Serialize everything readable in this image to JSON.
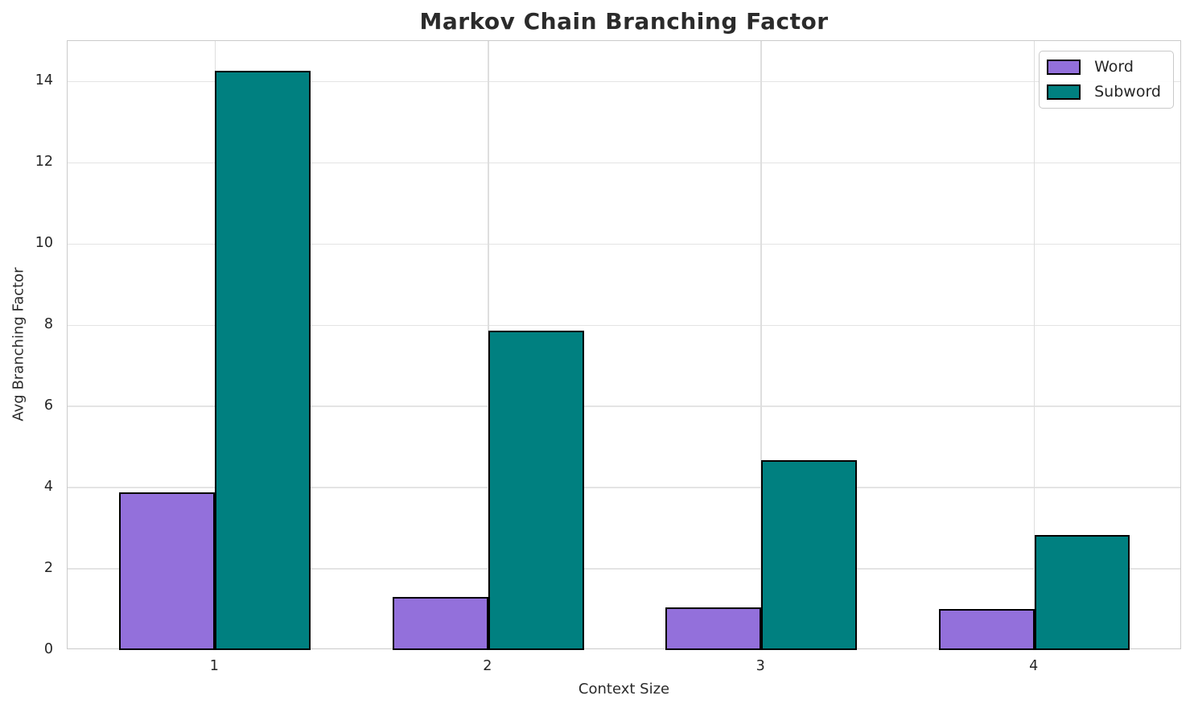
{
  "chart_data": {
    "type": "bar",
    "title": "Markov Chain Branching Factor",
    "xlabel": "Context Size",
    "ylabel": "Avg Branching Factor",
    "categories": [
      "1",
      "2",
      "3",
      "4"
    ],
    "series": [
      {
        "name": "Word",
        "color": "#9370DB",
        "values": [
          3.89,
          1.31,
          1.05,
          1.01
        ]
      },
      {
        "name": "Subword",
        "color": "#008080",
        "values": [
          14.27,
          7.86,
          4.67,
          2.83
        ]
      }
    ],
    "ylim": [
      0,
      15
    ],
    "yticks": [
      0,
      2,
      4,
      6,
      8,
      10,
      12,
      14
    ],
    "xlim": [
      0.46,
      4.54
    ],
    "bar_width": 0.35,
    "grid": true,
    "legend_position": "upper right",
    "bar_edge_color": "#000000",
    "background_color": "#ffffff"
  }
}
